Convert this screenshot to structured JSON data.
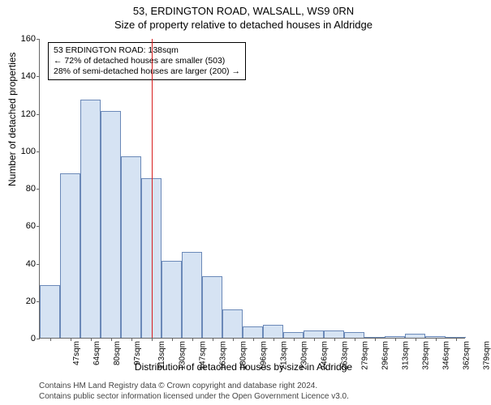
{
  "title_main": "53, ERDINGTON ROAD, WALSALL, WS9 0RN",
  "title_sub": "Size of property relative to detached houses in Aldridge",
  "y_label": "Number of detached properties",
  "x_label": "Distribution of detached houses by size in Aldridge",
  "chart": {
    "type": "histogram",
    "ylim": [
      0,
      160
    ],
    "ytick_step": 20,
    "x_categories": [
      "47sqm",
      "64sqm",
      "80sqm",
      "97sqm",
      "113sqm",
      "130sqm",
      "147sqm",
      "163sqm",
      "180sqm",
      "196sqm",
      "213sqm",
      "230sqm",
      "246sqm",
      "263sqm",
      "279sqm",
      "296sqm",
      "313sqm",
      "329sqm",
      "346sqm",
      "362sqm",
      "379sqm"
    ],
    "values": [
      28,
      88,
      127,
      121,
      97,
      85,
      41,
      46,
      33,
      15,
      6,
      7,
      3,
      4,
      4,
      3,
      0,
      1,
      2,
      1,
      0
    ],
    "bar_fill": "#d6e3f3",
    "bar_stroke": "#6b89b8",
    "bar_width_ratio": 1.0,
    "background_color": "#ffffff",
    "axis_color": "#666666",
    "ref_line": {
      "position_index": 5.5,
      "color": "#d81e1e"
    },
    "tick_fontsize": 10,
    "label_fontsize": 12
  },
  "annotation": {
    "lines": [
      "53 ERDINGTON ROAD: 138sqm",
      "← 72% of detached houses are smaller (503)",
      "28% of semi-detached houses are larger (200) →"
    ],
    "border_color": "#000000",
    "fontsize": 10.5
  },
  "credits": {
    "line1": "Contains HM Land Registry data © Crown copyright and database right 2024.",
    "line2": "Contains public sector information licensed under the Open Government Licence v3.0."
  }
}
